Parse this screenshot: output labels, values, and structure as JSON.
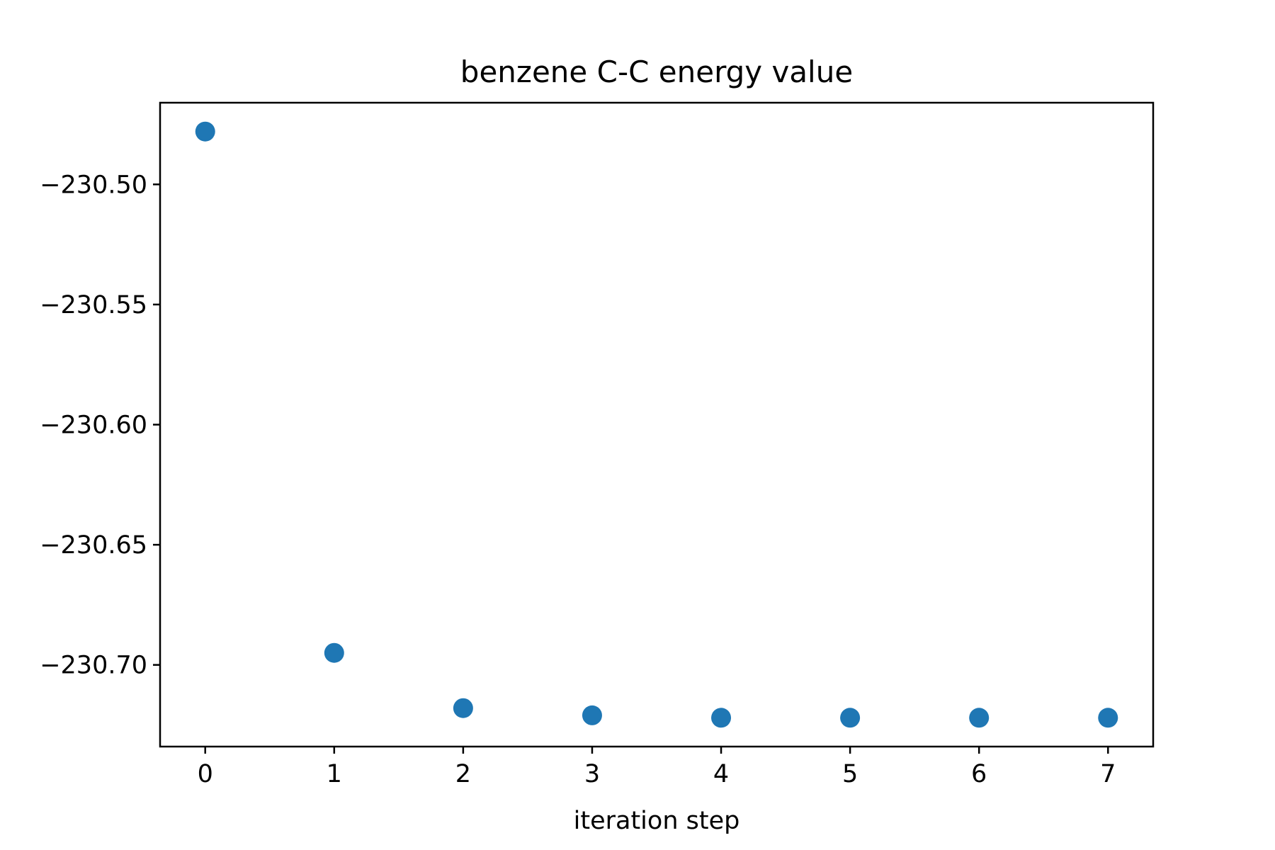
{
  "chart_data": {
    "type": "scatter",
    "title": "benzene C-C energy value",
    "xlabel": "iteration step",
    "ylabel": "",
    "x": [
      0,
      1,
      2,
      3,
      4,
      5,
      6,
      7
    ],
    "y": [
      -230.478,
      -230.695,
      -230.718,
      -230.721,
      -230.722,
      -230.722,
      -230.722,
      -230.722
    ],
    "xlim": [
      -0.35,
      7.35
    ],
    "ylim": [
      -230.734,
      -230.466
    ],
    "x_ticks": [
      0,
      1,
      2,
      3,
      4,
      5,
      6,
      7
    ],
    "x_tick_labels": [
      "0",
      "1",
      "2",
      "3",
      "4",
      "5",
      "6",
      "7"
    ],
    "y_ticks": [
      -230.5,
      -230.55,
      -230.6,
      -230.65,
      -230.7
    ],
    "y_tick_labels": [
      "−230.50",
      "−230.55",
      "−230.60",
      "−230.65",
      "−230.70"
    ],
    "grid": false,
    "legend": "none",
    "marker_color": "#1f77b4"
  }
}
